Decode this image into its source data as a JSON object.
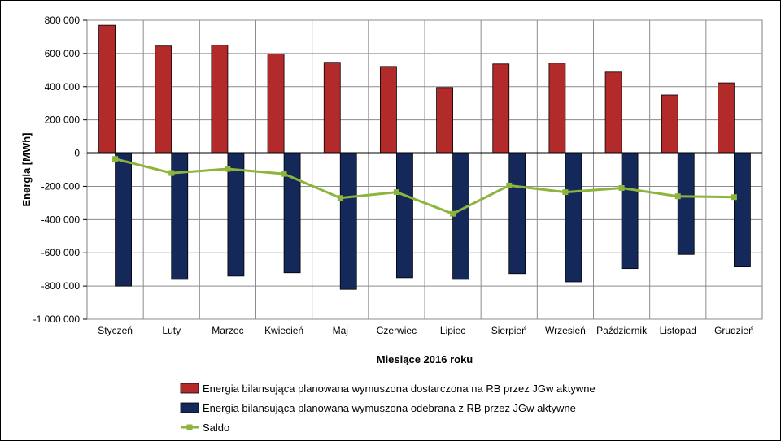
{
  "chart_data": {
    "type": "bar",
    "categories": [
      "Styczeń",
      "Luty",
      "Marzec",
      "Kwiecień",
      "Maj",
      "Czerwiec",
      "Lipiec",
      "Sierpień",
      "Wrzesień",
      "Październik",
      "Listopad",
      "Grudzień"
    ],
    "series": [
      {
        "name": "Energia bilansująca planowana wymuszona dostarczona na RB przez JGw aktywne",
        "type": "bar",
        "color": "#b22a2a",
        "values": [
          770000,
          645000,
          650000,
          597000,
          547000,
          522000,
          395000,
          537000,
          542000,
          488000,
          350000,
          423000
        ]
      },
      {
        "name": "Energia bilansująca planowana wymuszona odebrana z RB przez JGw aktywne",
        "type": "bar",
        "color": "#14285a",
        "values": [
          -800000,
          -760000,
          -740000,
          -720000,
          -820000,
          -750000,
          -760000,
          -725000,
          -775000,
          -695000,
          -610000,
          -685000
        ]
      },
      {
        "name": "Saldo",
        "type": "line",
        "color": "#8db43c",
        "values": [
          -35000,
          -120000,
          -95000,
          -125000,
          -270000,
          -235000,
          -365000,
          -195000,
          -235000,
          -210000,
          -260000,
          -265000
        ]
      }
    ],
    "xlabel": "Miesiące 2016  roku",
    "ylabel": "Energia [MWh]",
    "ylim": [
      -1000000,
      800000
    ],
    "yticks": [
      800000,
      600000,
      400000,
      200000,
      0,
      -200000,
      -400000,
      -600000,
      -800000,
      -1000000
    ],
    "ytick_labels": [
      "800 000",
      "600 000",
      "400 000",
      "200 000",
      "0",
      "-200 000",
      "-400 000",
      "-600 000",
      "-800 000",
      "-1 000 000"
    ],
    "grid": true,
    "legend_position": "bottom"
  }
}
